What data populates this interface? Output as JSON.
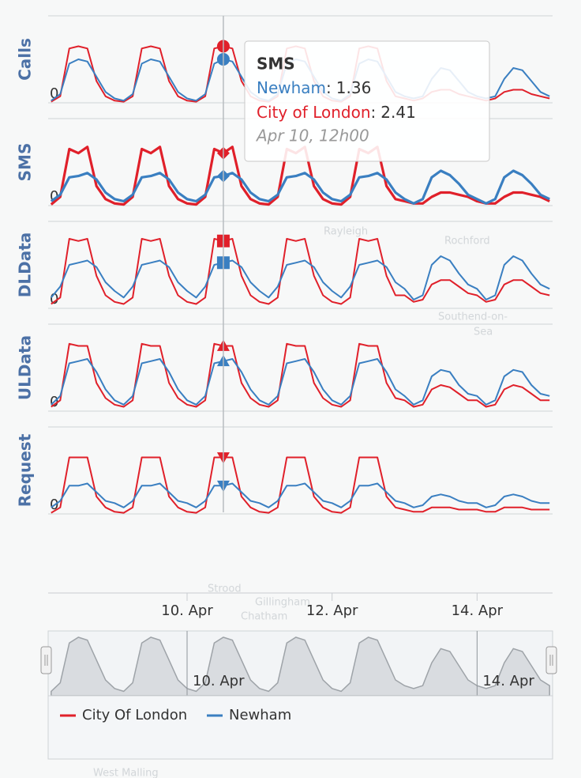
{
  "chart_data": {
    "type": "line",
    "x": [
      3,
      6,
      9,
      12,
      15,
      18,
      21,
      24,
      27,
      30,
      33,
      36,
      39,
      42,
      45,
      48,
      51,
      54,
      57,
      60,
      63,
      66,
      69,
      72,
      75,
      78,
      81,
      84,
      87,
      90,
      93,
      96,
      99,
      102,
      105,
      108,
      111,
      114,
      117,
      120,
      123,
      126,
      129,
      132,
      135,
      138,
      141,
      144,
      147,
      150,
      153,
      156,
      159,
      162,
      165,
      168
    ],
    "xlim": [
      2,
      169
    ],
    "xticks": [
      {
        "value": 48,
        "label": "10. Apr"
      },
      {
        "value": 96,
        "label": "12. Apr"
      },
      {
        "value": 144,
        "label": "14. Apr"
      }
    ],
    "panels": [
      {
        "y_title": "Calls",
        "marker": "circle",
        "ylim": [
          0,
          4
        ],
        "yticks": [
          0
        ],
        "series": [
          {
            "name": "City Of London",
            "color": "#e0202a",
            "values": [
              0.05,
              0.3,
              2.5,
              2.6,
              2.5,
              1.0,
              0.3,
              0.1,
              0.05,
              0.3,
              2.5,
              2.6,
              2.5,
              1.0,
              0.3,
              0.1,
              0.05,
              0.3,
              2.5,
              2.6,
              2.5,
              1.0,
              0.3,
              0.1,
              0.05,
              0.3,
              2.5,
              2.6,
              2.5,
              1.0,
              0.3,
              0.1,
              0.05,
              0.3,
              2.5,
              2.6,
              2.5,
              1.0,
              0.3,
              0.2,
              0.1,
              0.2,
              0.5,
              0.6,
              0.6,
              0.4,
              0.3,
              0.2,
              0.1,
              0.2,
              0.5,
              0.6,
              0.6,
              0.4,
              0.3,
              0.2
            ]
          },
          {
            "name": "Newham",
            "color": "#3a7fc1",
            "values": [
              0.1,
              0.4,
              1.8,
              2.0,
              1.9,
              1.2,
              0.5,
              0.2,
              0.1,
              0.4,
              1.8,
              2.0,
              1.9,
              1.2,
              0.5,
              0.2,
              0.1,
              0.4,
              1.8,
              2.0,
              1.9,
              1.2,
              0.5,
              0.2,
              0.1,
              0.4,
              1.8,
              2.0,
              1.9,
              1.2,
              0.5,
              0.2,
              0.1,
              0.4,
              1.8,
              2.0,
              1.9,
              1.2,
              0.5,
              0.3,
              0.2,
              0.3,
              1.1,
              1.6,
              1.5,
              1.0,
              0.5,
              0.3,
              0.2,
              0.3,
              1.1,
              1.6,
              1.5,
              1.0,
              0.5,
              0.3
            ]
          }
        ]
      },
      {
        "y_title": "SMS",
        "marker": "diamond",
        "ylim": [
          0,
          4
        ],
        "yticks": [
          0
        ],
        "series": [
          {
            "name": "City Of London",
            "color": "#e0202a",
            "values": [
              0.05,
              0.4,
              2.6,
              2.41,
              2.7,
              0.9,
              0.3,
              0.1,
              0.05,
              0.4,
              2.6,
              2.41,
              2.7,
              0.9,
              0.3,
              0.1,
              0.05,
              0.4,
              2.6,
              2.41,
              2.7,
              0.9,
              0.3,
              0.1,
              0.05,
              0.4,
              2.6,
              2.41,
              2.7,
              0.9,
              0.3,
              0.1,
              0.05,
              0.4,
              2.6,
              2.41,
              2.7,
              0.9,
              0.3,
              0.2,
              0.1,
              0.1,
              0.4,
              0.6,
              0.6,
              0.5,
              0.4,
              0.2,
              0.1,
              0.1,
              0.4,
              0.6,
              0.6,
              0.5,
              0.4,
              0.2
            ]
          },
          {
            "name": "Newham",
            "color": "#3a7fc1",
            "values": [
              0.2,
              0.5,
              1.3,
              1.36,
              1.5,
              1.2,
              0.6,
              0.3,
              0.2,
              0.5,
              1.3,
              1.36,
              1.5,
              1.2,
              0.6,
              0.3,
              0.2,
              0.5,
              1.3,
              1.36,
              1.5,
              1.2,
              0.6,
              0.3,
              0.2,
              0.5,
              1.3,
              1.36,
              1.5,
              1.2,
              0.6,
              0.3,
              0.2,
              0.5,
              1.3,
              1.36,
              1.5,
              1.2,
              0.6,
              0.3,
              0.1,
              0.3,
              1.3,
              1.6,
              1.4,
              1.0,
              0.5,
              0.3,
              0.1,
              0.3,
              1.3,
              1.6,
              1.4,
              1.0,
              0.5,
              0.3
            ]
          }
        ]
      },
      {
        "y_title": "DLData",
        "marker": "square",
        "ylim": [
          0,
          4
        ],
        "yticks": [
          0
        ],
        "series": [
          {
            "name": "City Of London",
            "color": "#e0202a",
            "values": [
              0.2,
              0.5,
              3.2,
              3.1,
              3.2,
              1.5,
              0.6,
              0.3,
              0.2,
              0.5,
              3.2,
              3.1,
              3.2,
              1.5,
              0.6,
              0.3,
              0.2,
              0.5,
              3.2,
              3.1,
              3.2,
              1.5,
              0.6,
              0.3,
              0.2,
              0.5,
              3.2,
              3.1,
              3.2,
              1.5,
              0.6,
              0.3,
              0.2,
              0.5,
              3.2,
              3.1,
              3.2,
              1.5,
              0.6,
              0.6,
              0.3,
              0.4,
              1.1,
              1.3,
              1.3,
              1.0,
              0.7,
              0.6,
              0.3,
              0.4,
              1.1,
              1.3,
              1.3,
              1.0,
              0.7,
              0.6
            ]
          },
          {
            "name": "Newham",
            "color": "#3a7fc1",
            "values": [
              0.5,
              1.0,
              2.0,
              2.1,
              2.2,
              1.9,
              1.2,
              0.8,
              0.5,
              1.0,
              2.0,
              2.1,
              2.2,
              1.9,
              1.2,
              0.8,
              0.5,
              1.0,
              2.0,
              2.1,
              2.2,
              1.9,
              1.2,
              0.8,
              0.5,
              1.0,
              2.0,
              2.1,
              2.2,
              1.9,
              1.2,
              0.8,
              0.5,
              1.0,
              2.0,
              2.1,
              2.2,
              1.9,
              1.2,
              0.9,
              0.4,
              0.6,
              2.0,
              2.4,
              2.2,
              1.6,
              1.1,
              0.9,
              0.4,
              0.6,
              2.0,
              2.4,
              2.2,
              1.6,
              1.1,
              0.9
            ]
          }
        ]
      },
      {
        "y_title": "ULData",
        "marker": "triangle",
        "ylim": [
          0,
          4
        ],
        "yticks": [
          0
        ],
        "series": [
          {
            "name": "City Of London",
            "color": "#e0202a",
            "values": [
              0.2,
              0.5,
              3.1,
              3.0,
              3.0,
              1.3,
              0.6,
              0.3,
              0.2,
              0.5,
              3.1,
              3.0,
              3.0,
              1.3,
              0.6,
              0.3,
              0.2,
              0.5,
              3.1,
              3.0,
              3.0,
              1.3,
              0.6,
              0.3,
              0.2,
              0.5,
              3.1,
              3.0,
              3.0,
              1.3,
              0.6,
              0.3,
              0.2,
              0.5,
              3.1,
              3.0,
              3.0,
              1.3,
              0.6,
              0.5,
              0.2,
              0.3,
              1.0,
              1.2,
              1.1,
              0.8,
              0.5,
              0.5,
              0.2,
              0.3,
              1.0,
              1.2,
              1.1,
              0.8,
              0.5,
              0.5
            ]
          },
          {
            "name": "Newham",
            "color": "#3a7fc1",
            "values": [
              0.3,
              0.7,
              2.2,
              2.3,
              2.4,
              1.8,
              1.0,
              0.5,
              0.3,
              0.7,
              2.2,
              2.3,
              2.4,
              1.8,
              1.0,
              0.5,
              0.3,
              0.7,
              2.2,
              2.3,
              2.4,
              1.8,
              1.0,
              0.5,
              0.3,
              0.7,
              2.2,
              2.3,
              2.4,
              1.8,
              1.0,
              0.5,
              0.3,
              0.7,
              2.2,
              2.3,
              2.4,
              1.8,
              1.0,
              0.7,
              0.3,
              0.5,
              1.6,
              1.9,
              1.8,
              1.2,
              0.8,
              0.7,
              0.3,
              0.5,
              1.6,
              1.9,
              1.8,
              1.2,
              0.8,
              0.7
            ]
          }
        ]
      },
      {
        "y_title": "Request",
        "marker": "triangle-down",
        "ylim": [
          0,
          4
        ],
        "yticks": [
          0
        ],
        "series": [
          {
            "name": "City Of London",
            "color": "#e0202a",
            "values": [
              0.05,
              0.3,
              2.6,
              2.6,
              2.6,
              0.8,
              0.3,
              0.1,
              0.05,
              0.3,
              2.6,
              2.6,
              2.6,
              0.8,
              0.3,
              0.1,
              0.05,
              0.3,
              2.6,
              2.6,
              2.6,
              0.8,
              0.3,
              0.1,
              0.05,
              0.3,
              2.6,
              2.6,
              2.6,
              0.8,
              0.3,
              0.1,
              0.05,
              0.3,
              2.6,
              2.6,
              2.6,
              0.8,
              0.3,
              0.2,
              0.1,
              0.1,
              0.3,
              0.3,
              0.3,
              0.2,
              0.2,
              0.2,
              0.1,
              0.1,
              0.3,
              0.3,
              0.3,
              0.2,
              0.2,
              0.2
            ]
          },
          {
            "name": "Newham",
            "color": "#3a7fc1",
            "values": [
              0.3,
              0.6,
              1.3,
              1.3,
              1.4,
              1.0,
              0.6,
              0.5,
              0.3,
              0.6,
              1.3,
              1.3,
              1.4,
              1.0,
              0.6,
              0.5,
              0.3,
              0.6,
              1.3,
              1.3,
              1.4,
              1.0,
              0.6,
              0.5,
              0.3,
              0.6,
              1.3,
              1.3,
              1.4,
              1.0,
              0.6,
              0.5,
              0.3,
              0.6,
              1.3,
              1.3,
              1.4,
              1.0,
              0.6,
              0.5,
              0.3,
              0.4,
              0.8,
              0.9,
              0.8,
              0.6,
              0.5,
              0.5,
              0.3,
              0.4,
              0.8,
              0.9,
              0.8,
              0.6,
              0.5,
              0.5
            ]
          }
        ]
      }
    ],
    "tooltip": {
      "title": "SMS",
      "x": 60,
      "separator": ":",
      "points": [
        {
          "name": "Newham",
          "color": "#3a7fc1",
          "value": 1.36
        },
        {
          "name": "City of London",
          "color": "#e0202a",
          "value": 2.41
        }
      ],
      "date": "Apr 10, 12h00"
    },
    "navigator": {
      "xticks": [
        {
          "value": 48,
          "label": "10. Apr"
        },
        {
          "value": 144,
          "label": "14. Apr"
        }
      ]
    },
    "map_labels": [
      "Rayleigh",
      "Rochford",
      "Southend-on-",
      "Sea",
      "Strood",
      "Gillingham",
      "Chatham",
      "West Malling"
    ]
  }
}
